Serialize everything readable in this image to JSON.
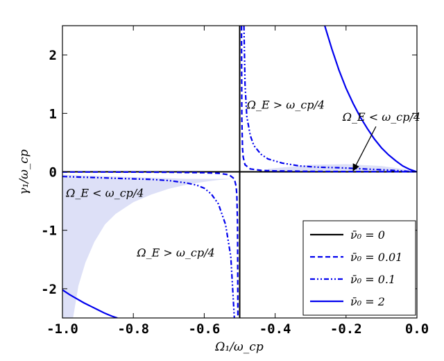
{
  "chart_data": {
    "type": "line",
    "xlabel": "Ω₁/ω_cp",
    "ylabel": "γ₁/ω_cp",
    "xlim": [
      -1.0,
      0.0
    ],
    "ylim": [
      -2.5,
      2.5
    ],
    "x_ticks": [
      "-1.0",
      "-0.8",
      "-0.6",
      "-0.4",
      "-0.2",
      "0.0"
    ],
    "y_ticks": [
      "2",
      "1",
      "0",
      "-1",
      "-2"
    ],
    "grid": false,
    "legend_placement": "lower-right",
    "legend": [
      {
        "label": "ν̄₀ = 0",
        "color": "#000000",
        "style": "solid"
      },
      {
        "label": "ν̄₀ = 0.01",
        "color": "#0000ee",
        "style": "dashed"
      },
      {
        "label": "ν̄₀ = 0.1",
        "color": "#0000ee",
        "style": "dashdotdot"
      },
      {
        "label": "ν̄₀ = 2",
        "color": "#0000ee",
        "style": "solid"
      }
    ],
    "annotations": [
      {
        "text": "Ω_E > ω_cp/4",
        "x": -0.37,
        "y": 1.08
      },
      {
        "text": "Ω_E < ω_cp/4",
        "x": -0.1,
        "y": 0.87,
        "arrow_to": [
          -0.18,
          0.02
        ]
      },
      {
        "text": "Ω_E < ω_cp/4",
        "x": -0.88,
        "y": -0.43
      },
      {
        "text": "Ω_E > ω_cp/4",
        "x": -0.68,
        "y": -1.45
      }
    ],
    "shaded_region": {
      "color": "#dde0f7",
      "description": "Ω_E < ω_cp/4"
    },
    "series": [
      {
        "name": "ν̄₀ = 0",
        "color": "#000000",
        "style": "solid",
        "segments": [
          [
            [
              -1.0,
              0.0
            ],
            [
              0.0,
              0.0
            ]
          ],
          [
            [
              -0.5,
              2.5
            ],
            [
              -0.5,
              -2.5
            ]
          ]
        ]
      },
      {
        "name": "ν̄₀ = 0.01",
        "color": "#0000ee",
        "style": "dashed",
        "segments": [
          [
            [
              -0.495,
              2.5
            ],
            [
              -0.494,
              0.9
            ],
            [
              -0.492,
              0.4
            ],
            [
              -0.49,
              0.25
            ],
            [
              -0.485,
              0.12
            ],
            [
              -0.47,
              0.05
            ],
            [
              -0.44,
              0.025
            ],
            [
              -0.4,
              0.015
            ],
            [
              -0.3,
              0.008
            ],
            [
              -0.2,
              0.005
            ],
            [
              -0.1,
              0.003
            ],
            [
              0.0,
              0.0
            ]
          ],
          [
            [
              -1.0,
              -0.003
            ],
            [
              -0.9,
              -0.004
            ],
            [
              -0.8,
              -0.005
            ],
            [
              -0.7,
              -0.008
            ],
            [
              -0.6,
              -0.015
            ],
            [
              -0.56,
              -0.025
            ],
            [
              -0.53,
              -0.05
            ],
            [
              -0.515,
              -0.12
            ],
            [
              -0.51,
              -0.25
            ],
            [
              -0.508,
              -0.4
            ],
            [
              -0.506,
              -0.9
            ],
            [
              -0.505,
              -2.5
            ]
          ]
        ]
      },
      {
        "name": "ν̄₀ = 0.1",
        "color": "#0000ee",
        "style": "dashdotdot",
        "segments": [
          [
            [
              -0.488,
              2.5
            ],
            [
              -0.485,
              1.5
            ],
            [
              -0.48,
              0.95
            ],
            [
              -0.47,
              0.62
            ],
            [
              -0.46,
              0.45
            ],
            [
              -0.44,
              0.3
            ],
            [
              -0.42,
              0.22
            ],
            [
              -0.38,
              0.15
            ],
            [
              -0.33,
              0.1
            ],
            [
              -0.28,
              0.08
            ],
            [
              -0.22,
              0.07
            ],
            [
              -0.15,
              0.05
            ],
            [
              -0.08,
              0.03
            ],
            [
              0.0,
              0.0
            ]
          ],
          [
            [
              -1.0,
              -0.08
            ],
            [
              -0.95,
              -0.09
            ],
            [
              -0.9,
              -0.1
            ],
            [
              -0.85,
              -0.11
            ],
            [
              -0.8,
              -0.12
            ],
            [
              -0.75,
              -0.13
            ],
            [
              -0.7,
              -0.15
            ],
            [
              -0.65,
              -0.19
            ],
            [
              -0.62,
              -0.23
            ],
            [
              -0.6,
              -0.28
            ],
            [
              -0.58,
              -0.38
            ],
            [
              -0.56,
              -0.55
            ],
            [
              -0.54,
              -0.9
            ],
            [
              -0.525,
              -1.45
            ],
            [
              -0.515,
              -2.5
            ]
          ]
        ]
      },
      {
        "name": "ν̄₀ = 2",
        "color": "#0000ee",
        "style": "solid",
        "segments": [
          [
            [
              -0.26,
              2.5
            ],
            [
              -0.24,
              2.1
            ],
            [
              -0.22,
              1.74
            ],
            [
              -0.2,
              1.43
            ],
            [
              -0.18,
              1.17
            ],
            [
              -0.16,
              0.94
            ],
            [
              -0.14,
              0.74
            ],
            [
              -0.12,
              0.56
            ],
            [
              -0.1,
              0.41
            ],
            [
              -0.08,
              0.29
            ],
            [
              -0.06,
              0.19
            ],
            [
              -0.04,
              0.1
            ],
            [
              -0.02,
              0.04
            ],
            [
              0.0,
              0.0
            ]
          ],
          [
            [
              -1.0,
              -2.02
            ],
            [
              -0.98,
              -2.1
            ],
            [
              -0.96,
              -2.17
            ],
            [
              -0.94,
              -2.24
            ],
            [
              -0.92,
              -2.3
            ],
            [
              -0.9,
              -2.36
            ],
            [
              -0.88,
              -2.42
            ],
            [
              -0.86,
              -2.47
            ],
            [
              -0.845,
              -2.5
            ]
          ]
        ]
      }
    ]
  }
}
